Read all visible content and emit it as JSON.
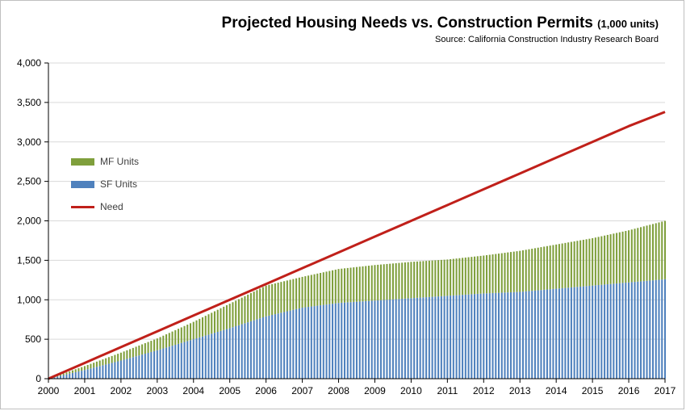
{
  "title": "Projected Housing Needs vs. Construction Permits",
  "title_unit": "(1,000 units)",
  "source": "Source:  California Construction Industry Research Board",
  "colors": {
    "mf": "#7f9f3c",
    "sf": "#4f81bd",
    "need": "#c0201a",
    "grid": "#d9d9d9",
    "axis": "#000000"
  },
  "legend": [
    {
      "label": "MF Units",
      "key": "mf",
      "kind": "box"
    },
    {
      "label": "SF Units",
      "key": "sf",
      "kind": "box"
    },
    {
      "label": "Need",
      "key": "need",
      "kind": "line"
    }
  ],
  "chart_data": {
    "type": "bar",
    "stacked": true,
    "title": "Projected Housing Needs vs. Construction Permits (1,000 units)",
    "xlabel": "",
    "ylabel": "",
    "ylim": [
      0,
      4000
    ],
    "yticks": [
      0,
      500,
      1000,
      1500,
      2000,
      2500,
      3000,
      3500,
      4000
    ],
    "ytick_labels": [
      "0",
      "500",
      "1,000",
      "1,500",
      "2,000",
      "2,500",
      "3,000",
      "3,500",
      "4,000"
    ],
    "xlim": [
      2000,
      2017
    ],
    "xticks": [
      2000,
      2001,
      2002,
      2003,
      2004,
      2005,
      2006,
      2007,
      2008,
      2009,
      2010,
      2011,
      2012,
      2013,
      2014,
      2015,
      2016,
      2017
    ],
    "xtick_labels": [
      "2000",
      "2001",
      "2002",
      "2003",
      "2004",
      "2005",
      "2006",
      "2007",
      "2008",
      "2009",
      "2010",
      "2011",
      "2012",
      "2013",
      "2014",
      "2015",
      "2016",
      "2017"
    ],
    "grid": true,
    "legend_position": "left",
    "bar_frequency": "monthly",
    "series": [
      {
        "name": "SF Units",
        "type": "bar",
        "color": "#4f81bd",
        "x": [
          2000,
          2001,
          2002,
          2003,
          2004,
          2005,
          2006,
          2007,
          2008,
          2009,
          2010,
          2011,
          2012,
          2013,
          2014,
          2015,
          2016,
          2017
        ],
        "values": [
          0,
          110,
          230,
          360,
          500,
          640,
          790,
          900,
          960,
          990,
          1020,
          1050,
          1080,
          1100,
          1140,
          1180,
          1220,
          1260
        ]
      },
      {
        "name": "MF Units",
        "type": "bar",
        "color": "#7f9f3c",
        "x": [
          2000,
          2001,
          2002,
          2003,
          2004,
          2005,
          2006,
          2007,
          2008,
          2009,
          2010,
          2011,
          2012,
          2013,
          2014,
          2015,
          2016,
          2017
        ],
        "values": [
          0,
          50,
          100,
          150,
          220,
          310,
          390,
          390,
          430,
          450,
          460,
          460,
          480,
          520,
          560,
          600,
          660,
          740
        ]
      },
      {
        "name": "Need",
        "type": "line",
        "color": "#c0201a",
        "x": [
          2000,
          2001,
          2002,
          2003,
          2004,
          2005,
          2006,
          2007,
          2008,
          2009,
          2010,
          2011,
          2012,
          2013,
          2014,
          2015,
          2016,
          2017
        ],
        "values": [
          0,
          200,
          400,
          600,
          800,
          1000,
          1200,
          1400,
          1600,
          1800,
          2000,
          2200,
          2400,
          2600,
          2800,
          3000,
          3200,
          3380
        ]
      }
    ]
  }
}
